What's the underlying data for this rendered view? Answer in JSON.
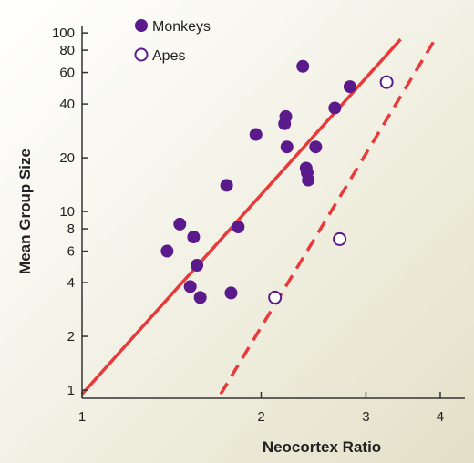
{
  "chart_data": {
    "type": "scatter",
    "xlabel": "Neocortex Ratio",
    "ylabel": "Mean Group Size",
    "xscale": "log",
    "yscale": "log",
    "xlim": [
      1,
      4.4
    ],
    "ylim": [
      0.9,
      110
    ],
    "x_ticks": [
      1,
      2,
      3,
      4
    ],
    "x_tick_labels": [
      "1",
      "2",
      "3",
      "4"
    ],
    "y_ticks": [
      1,
      2,
      4,
      6,
      8,
      10,
      20,
      40,
      60,
      80,
      100
    ],
    "y_tick_labels": [
      "1",
      "2",
      "4",
      "6",
      "8",
      "10",
      "20",
      "40",
      "60",
      "80",
      "100"
    ],
    "grid": false,
    "legend_position": "top-left",
    "series": [
      {
        "name": "Monkeys",
        "marker": "filled-circle",
        "color": "#5a1a8c",
        "points": [
          {
            "x": 1.39,
            "y": 6.0
          },
          {
            "x": 1.46,
            "y": 8.5
          },
          {
            "x": 1.54,
            "y": 7.2
          },
          {
            "x": 1.56,
            "y": 5.0
          },
          {
            "x": 1.52,
            "y": 3.8
          },
          {
            "x": 1.58,
            "y": 3.3
          },
          {
            "x": 1.75,
            "y": 14.0
          },
          {
            "x": 1.78,
            "y": 3.5
          },
          {
            "x": 1.83,
            "y": 8.2
          },
          {
            "x": 1.96,
            "y": 27
          },
          {
            "x": 2.19,
            "y": 31
          },
          {
            "x": 2.2,
            "y": 34
          },
          {
            "x": 2.21,
            "y": 23
          },
          {
            "x": 2.35,
            "y": 65
          },
          {
            "x": 2.38,
            "y": 17.5
          },
          {
            "x": 2.39,
            "y": 16.5
          },
          {
            "x": 2.4,
            "y": 15
          },
          {
            "x": 2.47,
            "y": 23
          },
          {
            "x": 2.66,
            "y": 38
          },
          {
            "x": 2.82,
            "y": 50
          }
        ]
      },
      {
        "name": "Apes",
        "marker": "open-circle",
        "color": "#5a1a8c",
        "points": [
          {
            "x": 2.11,
            "y": 3.3
          },
          {
            "x": 2.71,
            "y": 7.0
          },
          {
            "x": 3.25,
            "y": 53
          }
        ]
      }
    ],
    "lines": [
      {
        "series": "Monkeys",
        "style": "solid",
        "color": "#e83a3a",
        "from": {
          "x": 1.0,
          "y": 0.95
        },
        "to": {
          "x": 3.43,
          "y": 92
        }
      },
      {
        "series": "Apes",
        "style": "dashed",
        "color": "#e83a3a",
        "from": {
          "x": 1.71,
          "y": 0.95
        },
        "to": {
          "x": 3.92,
          "y": 92
        }
      }
    ]
  }
}
